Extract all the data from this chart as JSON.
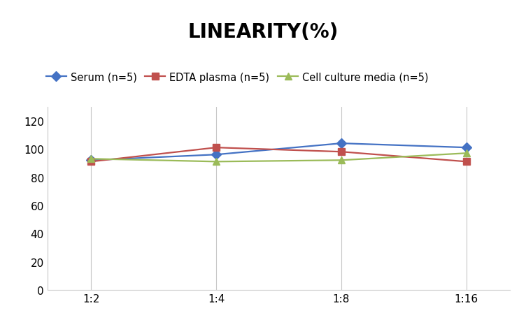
{
  "title": "LINEARITY(%)",
  "x_labels": [
    "1:2",
    "1:4",
    "1:8",
    "1:16"
  ],
  "series": [
    {
      "label": "Serum (n=5)",
      "values": [
        92,
        96,
        104,
        101
      ],
      "color": "#4472C4",
      "marker": "D",
      "marker_color": "#4472C4"
    },
    {
      "label": "EDTA plasma (n=5)",
      "values": [
        91,
        101,
        98,
        91
      ],
      "color": "#C0504D",
      "marker": "s",
      "marker_color": "#C0504D"
    },
    {
      "label": "Cell culture media (n=5)",
      "values": [
        93,
        91,
        92,
        97
      ],
      "color": "#9BBB59",
      "marker": "^",
      "marker_color": "#9BBB59"
    }
  ],
  "ylim": [
    0,
    130
  ],
  "yticks": [
    0,
    20,
    40,
    60,
    80,
    100,
    120
  ],
  "title_fontsize": 20,
  "legend_fontsize": 10.5,
  "tick_fontsize": 11,
  "background_color": "#FFFFFF",
  "grid_color": "#C8C8C8",
  "figsize": [
    7.52,
    4.52
  ],
  "dpi": 100
}
